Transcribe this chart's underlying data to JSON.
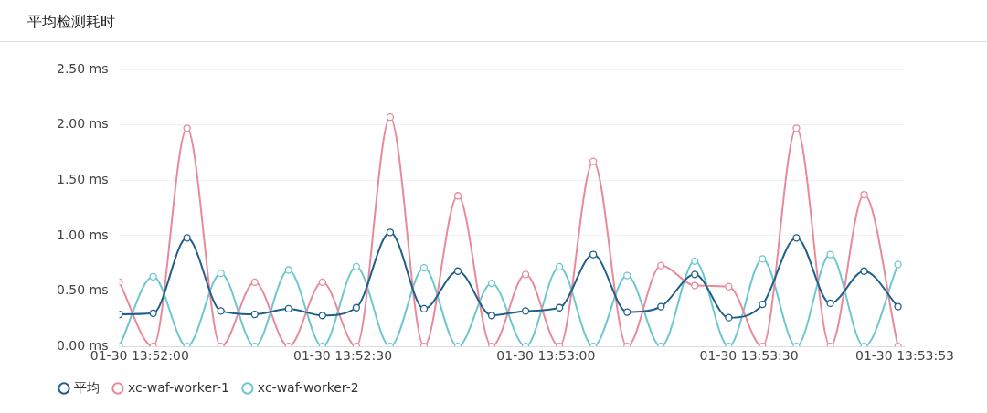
{
  "chart_data": {
    "type": "line",
    "title": "平均检测耗时",
    "x": [
      "--01-30T13:51:57",
      "--01-30T13:52:02",
      "--01-30T13:52:07",
      "--01-30T13:52:12",
      "--01-30T13:52:17",
      "--01-30T13:52:22",
      "--01-30T13:52:27",
      "--01-30T13:52:32",
      "--01-30T13:52:37",
      "--01-30T13:52:42",
      "--01-30T13:52:47",
      "--01-30T13:52:52",
      "--01-30T13:52:57",
      "--01-30T13:53:02",
      "--01-30T13:53:07",
      "--01-30T13:53:12",
      "--01-30T13:53:17",
      "--01-30T13:53:22",
      "--01-30T13:53:27",
      "--01-30T13:53:32",
      "--01-30T13:53:37",
      "--01-30T13:53:42",
      "--01-30T13:53:47",
      "--01-30T13:53:52"
    ],
    "series": [
      {
        "name": "平均",
        "color": "#1f5f8b",
        "values": [
          0.29,
          0.3,
          0.98,
          0.32,
          0.29,
          0.34,
          0.28,
          0.35,
          1.03,
          0.34,
          0.68,
          0.28,
          0.32,
          0.35,
          0.83,
          0.31,
          0.36,
          0.65,
          0.26,
          0.38,
          0.98,
          0.39,
          0.68,
          0.36
        ]
      },
      {
        "name": "xc-waf-worker-1",
        "color": "#e98a9a",
        "values": [
          0.58,
          0,
          1.97,
          0,
          0.58,
          0,
          0.58,
          0,
          2.07,
          0,
          1.36,
          0,
          0.65,
          0,
          1.67,
          0,
          0.73,
          0.55,
          0.54,
          0,
          1.97,
          0,
          1.37,
          0
        ]
      },
      {
        "name": "xc-waf-worker-2",
        "color": "#6cc7cf",
        "values": [
          0,
          0.63,
          0,
          0.66,
          0,
          0.69,
          0,
          0.72,
          0,
          0.71,
          0,
          0.57,
          0,
          0.72,
          0,
          0.64,
          0,
          0.77,
          0,
          0.79,
          0,
          0.83,
          0,
          0.74
        ]
      }
    ],
    "xlim": [
      "--01-30T13:51:57",
      "--01-30T13:53:53"
    ],
    "xticks": [
      {
        "value": "--01-30T13:52:00",
        "label": "01-30 13:52:00"
      },
      {
        "value": "--01-30T13:52:30",
        "label": "01-30 13:52:30"
      },
      {
        "value": "--01-30T13:53:00",
        "label": "01-30 13:53:00"
      },
      {
        "value": "--01-30T13:53:30",
        "label": "01-30 13:53:30"
      },
      {
        "value": "--01-30T13:53:53",
        "label": "01-30 13:53:53"
      }
    ],
    "ylim": [
      0,
      2.5
    ],
    "yticks": [
      {
        "value": 0,
        "label": "0.00 ms"
      },
      {
        "value": 0.5,
        "label": "0.50 ms"
      },
      {
        "value": 1,
        "label": "1.00 ms"
      },
      {
        "value": 1.5,
        "label": "1.50 ms"
      },
      {
        "value": 2,
        "label": "2.00 ms"
      },
      {
        "value": 2.5,
        "label": "2.50 ms"
      }
    ],
    "grid": "y",
    "legend": "bottom left",
    "marker": "circle",
    "line_style": "solid"
  }
}
